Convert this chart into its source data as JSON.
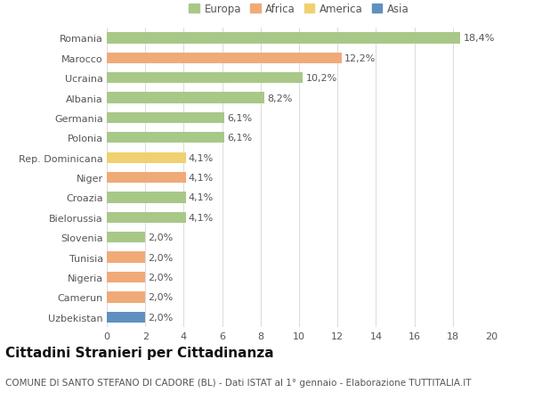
{
  "categories": [
    "Romania",
    "Marocco",
    "Ucraina",
    "Albania",
    "Germania",
    "Polonia",
    "Rep. Dominicana",
    "Niger",
    "Croazia",
    "Bielorussia",
    "Slovenia",
    "Tunisia",
    "Nigeria",
    "Camerun",
    "Uzbekistan"
  ],
  "values": [
    18.4,
    12.2,
    10.2,
    8.2,
    6.1,
    6.1,
    4.1,
    4.1,
    4.1,
    4.1,
    2.0,
    2.0,
    2.0,
    2.0,
    2.0
  ],
  "labels": [
    "18,4%",
    "12,2%",
    "10,2%",
    "8,2%",
    "6,1%",
    "6,1%",
    "4,1%",
    "4,1%",
    "4,1%",
    "4,1%",
    "2,0%",
    "2,0%",
    "2,0%",
    "2,0%",
    "2,0%"
  ],
  "colors": [
    "#a8c888",
    "#f0aa78",
    "#a8c888",
    "#a8c888",
    "#a8c888",
    "#a8c888",
    "#f0d070",
    "#f0aa78",
    "#a8c888",
    "#a8c888",
    "#a8c888",
    "#f0aa78",
    "#f0aa78",
    "#f0aa78",
    "#6090c0"
  ],
  "legend_labels": [
    "Europa",
    "Africa",
    "America",
    "Asia"
  ],
  "legend_colors": [
    "#a8c888",
    "#f0aa78",
    "#f0d070",
    "#6090c0"
  ],
  "xlim": [
    0,
    20
  ],
  "xticks": [
    0,
    2,
    4,
    6,
    8,
    10,
    12,
    14,
    16,
    18,
    20
  ],
  "title": "Cittadini Stranieri per Cittadinanza",
  "subtitle": "COMUNE DI SANTO STEFANO DI CADORE (BL) - Dati ISTAT al 1° gennaio - Elaborazione TUTTITALIA.IT",
  "bg_color": "#ffffff",
  "grid_color": "#dddddd",
  "bar_height": 0.55,
  "label_fontsize": 8,
  "tick_fontsize": 8,
  "title_fontsize": 11,
  "subtitle_fontsize": 7.5
}
